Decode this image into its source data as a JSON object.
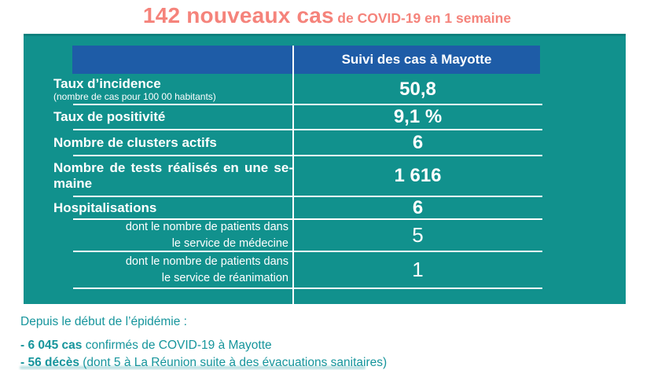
{
  "title": {
    "highlight": "142 nouveaux cas",
    "rest": "de COVID-19 en 1 semaine"
  },
  "table": {
    "header": "Suivi des cas à Mayotte",
    "rows": [
      {
        "label": "Taux d’incidence",
        "sublabel": "(nombre de cas pour 100 00 habitants)",
        "value": "50,8"
      },
      {
        "label": "Taux de positivité",
        "value": "9,1 %"
      },
      {
        "label": "Nombre de clusters actifs",
        "value": "6"
      },
      {
        "label_line1": "Nombre de tests réalisés en une se-",
        "label_line2": "maine",
        "value": "1 616"
      },
      {
        "label": "Hospitalisations",
        "value": "6"
      },
      {
        "label": "dont le nombre de patients dans\nle service de médecine",
        "value": "5"
      },
      {
        "label": "dont le nombre de patients dans\nle service de réanimation",
        "value": "1"
      }
    ]
  },
  "footer": {
    "intro": "Depuis le début de l’épidémie :",
    "items": [
      {
        "lead": "- 6 045 cas",
        "rest": " confirmés de COVID-19 à Mayotte"
      },
      {
        "lead": "- 56 décès",
        "rest": " (dont 5 à La Réunion suite à des évacuations sanitaires)"
      }
    ]
  },
  "colors": {
    "panel_teal": "#11918D",
    "panel_border_teal": "#0B807D",
    "header_blue": "#1E5CA7",
    "title_coral": "#F5837B",
    "footer_teal": "#16959C",
    "table_text": "#FFFFFF"
  }
}
